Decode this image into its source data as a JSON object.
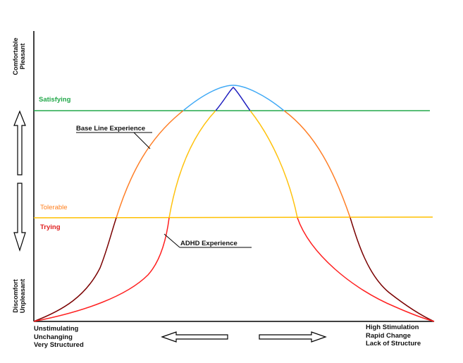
{
  "colors": {
    "axis": "#000000",
    "satisfying_line": "#22a84a",
    "tolerable_line": "#ffc000",
    "baseline_curve_upper": "#ff7f27",
    "baseline_curve_lower": "#7a0000",
    "adhd_curve_upper": "#ffc20e",
    "adhd_curve_lower": "#ff2020",
    "peak_light": "#3fa9f5",
    "peak_dark": "#1f1fbf",
    "label_satisfying": "#22a84a",
    "label_tolerable": "#ff8020",
    "label_trying": "#e02020"
  },
  "y_axis": {
    "top_label_line1": "Comfortable",
    "top_label_line2": "Pleasant",
    "bottom_label_line1": "Discomfort",
    "bottom_label_line2": "Unpleasant"
  },
  "levels": {
    "satisfying": "Satisfying",
    "tolerable": "Tolerable",
    "trying": "Trying"
  },
  "curves": {
    "baseline_label": "Base Line Experience",
    "adhd_label": "ADHD Experience"
  },
  "x_axis": {
    "left_labels": [
      "Unstimulating",
      "Unchanging",
      "Very Structured"
    ],
    "right_labels": [
      "High Stimulation",
      "Rapid Change",
      "Lack of Structure"
    ]
  },
  "icons": [
    "up-arrow-icon",
    "down-arrow-icon",
    "left-arrow-icon",
    "right-arrow-icon"
  ]
}
